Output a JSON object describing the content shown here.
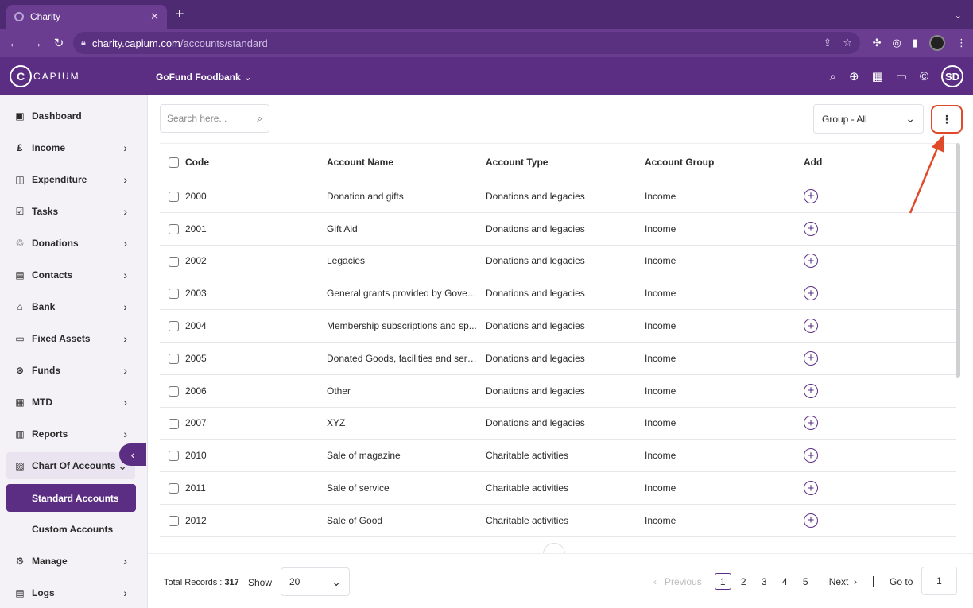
{
  "browser": {
    "tab_title": "Charity",
    "url_host": "charity.capium.com",
    "url_path": "/accounts/standard"
  },
  "header": {
    "logo_text": "CAPIUM",
    "org_name": "GoFund Foodbank",
    "avatar_initials": "SD"
  },
  "sidebar": {
    "items": [
      {
        "label": "Dashboard",
        "icon": "dashboard-icon"
      },
      {
        "label": "Income",
        "icon": "pound-icon"
      },
      {
        "label": "Expenditure",
        "icon": "bag-icon"
      },
      {
        "label": "Tasks",
        "icon": "tasks-icon"
      },
      {
        "label": "Donations",
        "icon": "donations-icon"
      },
      {
        "label": "Contacts",
        "icon": "contacts-icon"
      },
      {
        "label": "Bank",
        "icon": "bank-icon"
      },
      {
        "label": "Fixed Assets",
        "icon": "fixed-assets-icon"
      },
      {
        "label": "Funds",
        "icon": "funds-icon"
      },
      {
        "label": "MTD",
        "icon": "calendar-icon"
      },
      {
        "label": "Reports",
        "icon": "reports-icon"
      },
      {
        "label": "Chart Of Accounts",
        "icon": "chart-icon"
      },
      {
        "label": "Standard Accounts"
      },
      {
        "label": "Custom Accounts"
      },
      {
        "label": "Manage",
        "icon": "gear-icon"
      },
      {
        "label": "Logs",
        "icon": "logs-icon"
      }
    ]
  },
  "toolbar": {
    "search_placeholder": "Search here...",
    "group_select": "Group - All"
  },
  "table": {
    "headers": {
      "code": "Code",
      "name": "Account Name",
      "type": "Account Type",
      "group": "Account Group",
      "add": "Add"
    },
    "rows": [
      {
        "code": "2000",
        "name": "Donation and gifts",
        "type": "Donations and legacies",
        "group": "Income"
      },
      {
        "code": "2001",
        "name": "Gift Aid",
        "type": "Donations and legacies",
        "group": "Income"
      },
      {
        "code": "2002",
        "name": "Legacies",
        "type": "Donations and legacies",
        "group": "Income"
      },
      {
        "code": "2003",
        "name": "General grants provided by Gover...",
        "type": "Donations and legacies",
        "group": "Income"
      },
      {
        "code": "2004",
        "name": "Membership subscriptions and sp...",
        "type": "Donations and legacies",
        "group": "Income"
      },
      {
        "code": "2005",
        "name": "Donated Goods, facilities and serv...",
        "type": "Donations and legacies",
        "group": "Income"
      },
      {
        "code": "2006",
        "name": "Other",
        "type": "Donations and legacies",
        "group": "Income"
      },
      {
        "code": "2007",
        "name": "XYZ",
        "type": "Donations and legacies",
        "group": "Income"
      },
      {
        "code": "2010",
        "name": "Sale of magazine",
        "type": "Charitable activities",
        "group": "Income"
      },
      {
        "code": "2011",
        "name": "Sale of service",
        "type": "Charitable activities",
        "group": "Income"
      },
      {
        "code": "2012",
        "name": "Sale of Good",
        "type": "Charitable activities",
        "group": "Income"
      }
    ]
  },
  "footer": {
    "total_label": "Total Records :",
    "total_value": "317",
    "show_label": "Show",
    "page_size": "20",
    "prev_label": "Previous",
    "pages": [
      "1",
      "2",
      "3",
      "4",
      "5"
    ],
    "current_page": "1",
    "next_label": "Next",
    "goto_label": "Go to",
    "goto_value": "1"
  },
  "colors": {
    "brand": "#5b2e84",
    "highlight": "#e04a2b"
  }
}
